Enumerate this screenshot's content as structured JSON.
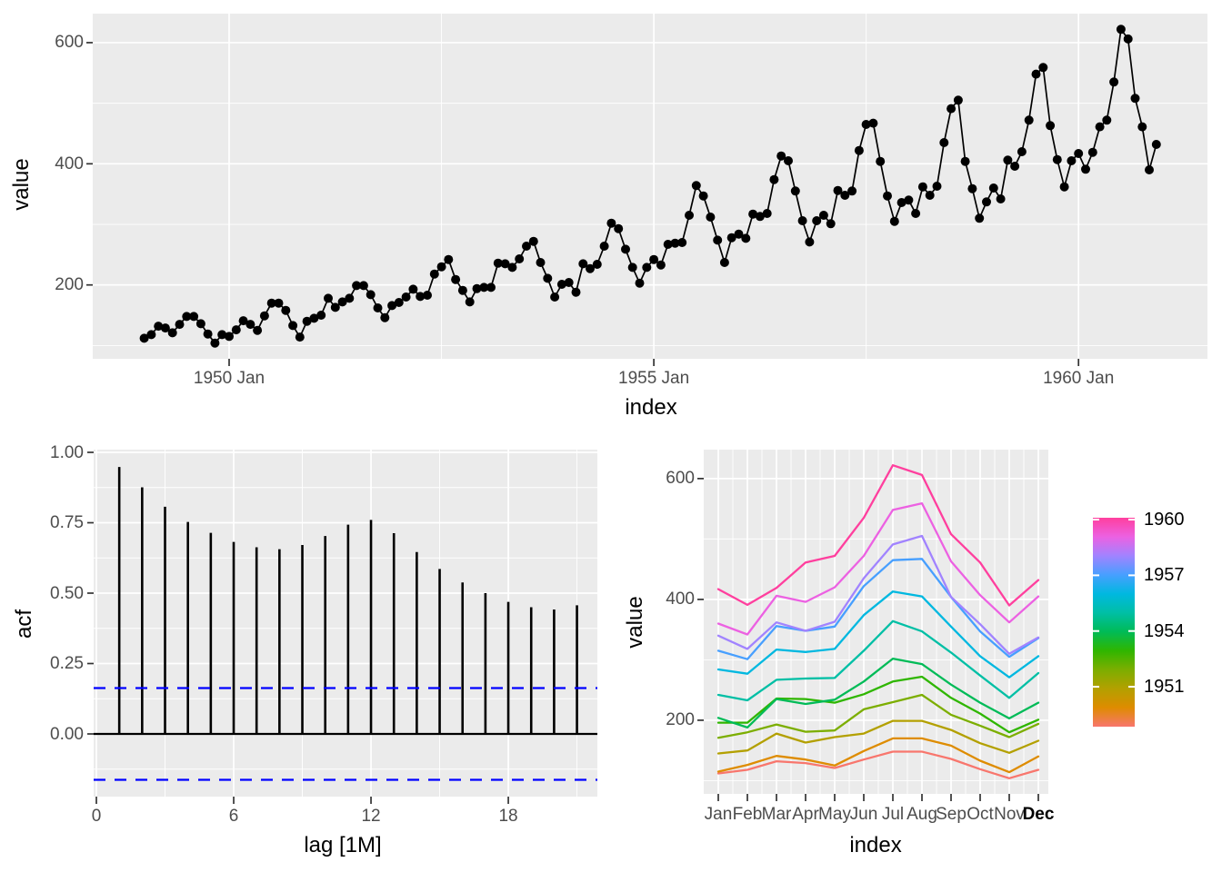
{
  "figure": {
    "background": "#FFFFFF",
    "panel_background": "#EBEBEB",
    "gridline_color": "#FFFFFF",
    "axis_text_color": "#4D4D4D",
    "axis_title_color": "#000000",
    "tick_mark_color": "#333333"
  },
  "chart_data": [
    {
      "id": "timeseries",
      "type": "line",
      "xlabel": "index",
      "ylabel": "value",
      "line_color": "#000000",
      "point_color": "#000000",
      "x_tick_labels": [
        "1950 Jan",
        "1955 Jan",
        "1960 Jan"
      ],
      "x_tick_years": [
        1950,
        1955,
        1960
      ],
      "x_minor_years": [
        1952.5,
        1957.5
      ],
      "y_ticks": [
        200,
        400,
        600
      ],
      "y_tick_labels": [
        "200",
        "400",
        "600"
      ],
      "y_minor": [
        100,
        300,
        500
      ],
      "start_year": 1949,
      "end_year": 1960,
      "frequency": 12,
      "ylim": [
        78.1,
        647.9
      ],
      "values": [
        112,
        118,
        132,
        129,
        121,
        135,
        148,
        148,
        136,
        119,
        104,
        118,
        115,
        126,
        141,
        135,
        125,
        149,
        170,
        170,
        158,
        133,
        114,
        140,
        145,
        150,
        178,
        163,
        172,
        178,
        199,
        199,
        184,
        162,
        146,
        166,
        171,
        180,
        193,
        181,
        183,
        218,
        230,
        242,
        209,
        191,
        172,
        194,
        196,
        196,
        236,
        235,
        229,
        243,
        264,
        272,
        237,
        211,
        180,
        201,
        204,
        188,
        235,
        227,
        234,
        264,
        302,
        293,
        259,
        229,
        203,
        229,
        242,
        233,
        267,
        269,
        270,
        315,
        364,
        347,
        312,
        274,
        237,
        278,
        284,
        277,
        317,
        313,
        318,
        374,
        413,
        405,
        355,
        306,
        271,
        306,
        315,
        301,
        356,
        348,
        355,
        422,
        465,
        467,
        404,
        347,
        305,
        336,
        340,
        318,
        362,
        348,
        363,
        435,
        491,
        505,
        404,
        359,
        310,
        337,
        360,
        342,
        406,
        396,
        420,
        472,
        548,
        559,
        463,
        407,
        362,
        405,
        417,
        391,
        419,
        461,
        472,
        535,
        622,
        606,
        508,
        461,
        390,
        432
      ]
    },
    {
      "id": "acf",
      "type": "bar",
      "xlabel": "lag [1M]",
      "ylabel": "acf",
      "bar_color": "#000000",
      "significance_color": "#0000FF",
      "significance_level": 0.163,
      "x_ticks": [
        0,
        6,
        12,
        18
      ],
      "x_tick_labels": [
        "0",
        "6",
        "12",
        "18"
      ],
      "x_minor": [
        3,
        9,
        15,
        21
      ],
      "y_ticks": [
        0,
        0.25,
        0.5,
        0.75,
        1
      ],
      "y_tick_labels": [
        "0.00",
        "0.25",
        "0.50",
        "0.75",
        "1.00"
      ],
      "y_minor": [
        -0.125,
        0.125,
        0.375,
        0.625,
        0.875
      ],
      "ylim": [
        -0.221,
        1.006
      ],
      "lags": [
        1,
        2,
        3,
        4,
        5,
        6,
        7,
        8,
        9,
        10,
        11,
        12,
        13,
        14,
        15,
        16,
        17,
        18,
        19,
        20,
        21
      ],
      "values": [
        0.948,
        0.876,
        0.807,
        0.753,
        0.714,
        0.682,
        0.663,
        0.656,
        0.671,
        0.703,
        0.743,
        0.76,
        0.713,
        0.646,
        0.586,
        0.538,
        0.5,
        0.469,
        0.45,
        0.442,
        0.457
      ]
    },
    {
      "id": "season",
      "type": "line",
      "xlabel": "index",
      "ylabel": "value",
      "categories": [
        "Jan",
        "Feb",
        "Mar",
        "Apr",
        "May",
        "Jun",
        "Jul",
        "Aug",
        "Sep",
        "Oct",
        "Nov",
        "Dec"
      ],
      "y_ticks": [
        200,
        400,
        600
      ],
      "y_tick_labels": [
        "200",
        "400",
        "600"
      ],
      "y_minor": [
        100,
        300,
        500
      ],
      "ylim": [
        78.1,
        647.9
      ],
      "series": [
        {
          "name": "1949",
          "color": "#F8766D",
          "values": [
            112,
            118,
            132,
            129,
            121,
            135,
            148,
            148,
            136,
            119,
            104,
            118
          ]
        },
        {
          "name": "1950",
          "color": "#DE8C00",
          "values": [
            115,
            126,
            141,
            135,
            125,
            149,
            170,
            170,
            158,
            133,
            114,
            140
          ]
        },
        {
          "name": "1951",
          "color": "#B3A000",
          "values": [
            145,
            150,
            178,
            163,
            172,
            178,
            199,
            199,
            184,
            162,
            146,
            166
          ]
        },
        {
          "name": "1952",
          "color": "#7CAE00",
          "values": [
            171,
            180,
            193,
            181,
            183,
            218,
            230,
            242,
            209,
            191,
            172,
            194
          ]
        },
        {
          "name": "1953",
          "color": "#2FB600",
          "values": [
            196,
            196,
            236,
            235,
            229,
            243,
            264,
            272,
            237,
            211,
            180,
            201
          ]
        },
        {
          "name": "1954",
          "color": "#00BB57",
          "values": [
            204,
            188,
            235,
            227,
            234,
            264,
            302,
            293,
            259,
            229,
            203,
            229
          ]
        },
        {
          "name": "1955",
          "color": "#00BFA5",
          "values": [
            242,
            233,
            267,
            269,
            270,
            315,
            364,
            347,
            312,
            274,
            237,
            278
          ]
        },
        {
          "name": "1956",
          "color": "#00B8E0",
          "values": [
            284,
            277,
            317,
            313,
            318,
            374,
            413,
            405,
            355,
            306,
            271,
            306
          ]
        },
        {
          "name": "1957",
          "color": "#479FFF",
          "values": [
            315,
            301,
            356,
            348,
            355,
            422,
            465,
            467,
            404,
            347,
            305,
            336
          ]
        },
        {
          "name": "1958",
          "color": "#A183FF",
          "values": [
            340,
            318,
            362,
            348,
            363,
            435,
            491,
            505,
            404,
            359,
            310,
            337
          ]
        },
        {
          "name": "1959",
          "color": "#EC61E2",
          "values": [
            360,
            342,
            406,
            396,
            420,
            472,
            548,
            559,
            463,
            407,
            362,
            405
          ]
        },
        {
          "name": "1960",
          "color": "#FF3F9E",
          "values": [
            417,
            391,
            419,
            461,
            472,
            535,
            622,
            606,
            508,
            461,
            390,
            432
          ]
        }
      ],
      "legend": {
        "type": "colorbar",
        "position": "right",
        "tick_labels": [
          "1960",
          "1957",
          "1954",
          "1951"
        ],
        "tick_years": [
          1960,
          1957,
          1954,
          1951
        ],
        "range": [
          1949,
          1960
        ]
      }
    }
  ]
}
